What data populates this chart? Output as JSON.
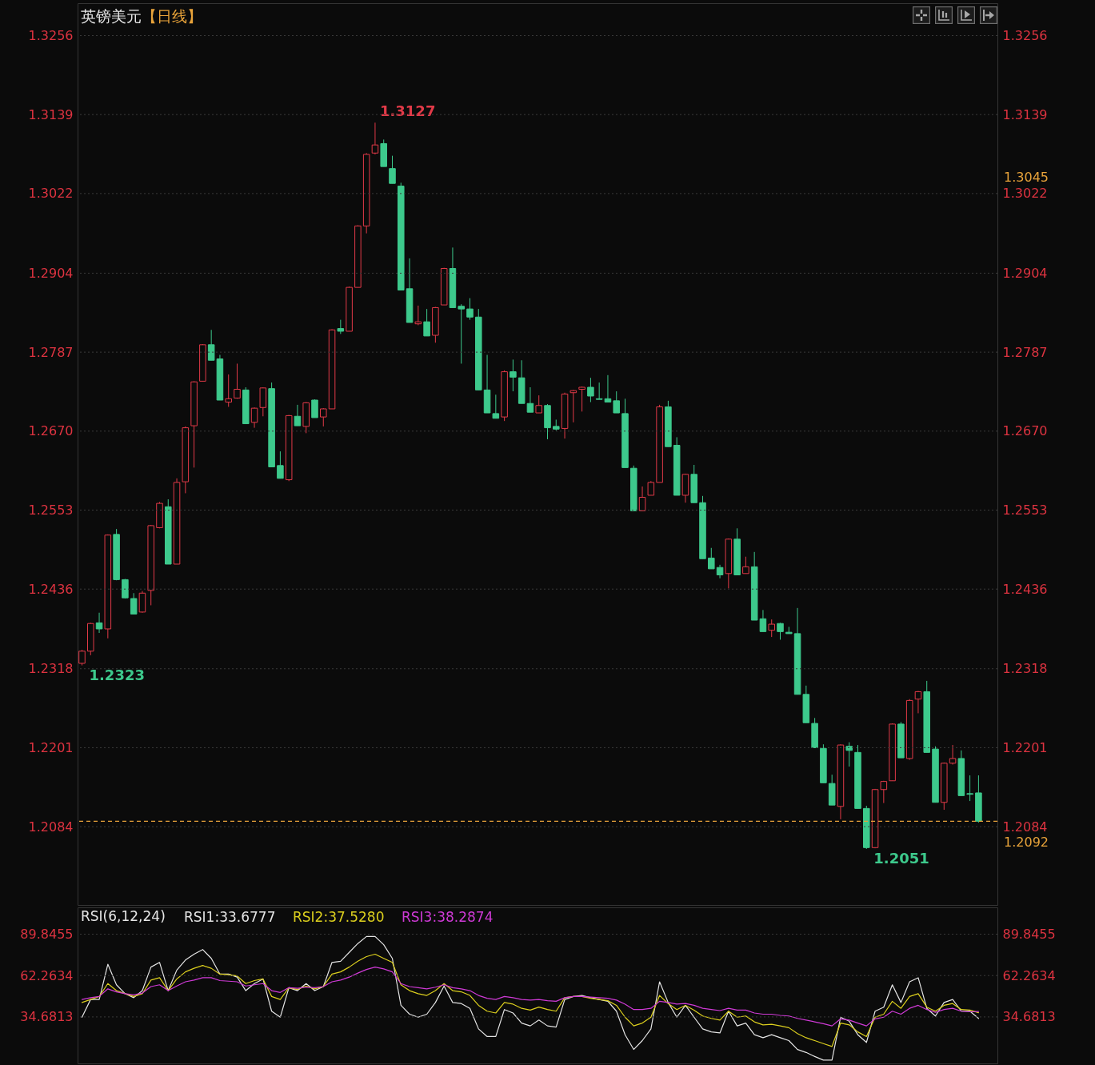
{
  "chart_data": [
    {
      "type": "candlestick",
      "title": "英镑美元",
      "subtitle": "【日线】",
      "categories": [
        null,
        null,
        null,
        null,
        null,
        null,
        null,
        null,
        null,
        null,
        null,
        null,
        null,
        null,
        null,
        null,
        null,
        null,
        null,
        null,
        null,
        null,
        null,
        null,
        null,
        null,
        null,
        null,
        null,
        null,
        null,
        null,
        null,
        null,
        null,
        null,
        null,
        null,
        null,
        null,
        null,
        null,
        null,
        null,
        null,
        null,
        null,
        null,
        null,
        null,
        null,
        null,
        null,
        null,
        null,
        null,
        null,
        null,
        null,
        null,
        null,
        null,
        null,
        null,
        null,
        null,
        null,
        null,
        null,
        null,
        null,
        null,
        null,
        null,
        null,
        null,
        null,
        null,
        null,
        null,
        null,
        null,
        null,
        null,
        null,
        null,
        null,
        null,
        null,
        null,
        null,
        null,
        null,
        null,
        null,
        null,
        null,
        null,
        null,
        null,
        null,
        null,
        null,
        null,
        null
      ],
      "ohlc": [
        [
          1.2326,
          1.2346,
          1.2323,
          1.2344
        ],
        [
          1.2344,
          1.2386,
          1.2338,
          1.2385
        ],
        [
          1.2386,
          1.2401,
          1.2371,
          1.2377
        ],
        [
          1.2377,
          1.2517,
          1.2363,
          1.2516
        ],
        [
          1.2517,
          1.2525,
          1.2449,
          1.245
        ],
        [
          1.245,
          1.2451,
          1.2422,
          1.2423
        ],
        [
          1.2422,
          1.243,
          1.2399,
          1.2399
        ],
        [
          1.2402,
          1.2433,
          1.2401,
          1.243
        ],
        [
          1.2434,
          1.2531,
          1.2412,
          1.253
        ],
        [
          1.2527,
          1.2565,
          1.2526,
          1.2563
        ],
        [
          1.2558,
          1.2569,
          1.2473,
          1.2473
        ],
        [
          1.2473,
          1.26,
          1.2473,
          1.2594
        ],
        [
          1.2595,
          1.2677,
          1.2578,
          1.2675
        ],
        [
          1.2678,
          1.2744,
          1.2616,
          1.2743
        ],
        [
          1.2744,
          1.2799,
          1.2744,
          1.2798
        ],
        [
          1.2798,
          1.282,
          1.2775,
          1.2775
        ],
        [
          1.2777,
          1.2783,
          1.2716,
          1.2716
        ],
        [
          1.2713,
          1.2754,
          1.2706,
          1.2718
        ],
        [
          1.2719,
          1.277,
          1.2718,
          1.2732
        ],
        [
          1.2731,
          1.2735,
          1.2681,
          1.2681
        ],
        [
          1.2683,
          1.2705,
          1.2675,
          1.2704
        ],
        [
          1.2705,
          1.2735,
          1.2692,
          1.2734
        ],
        [
          1.2733,
          1.2742,
          1.2617,
          1.2617
        ],
        [
          1.2619,
          1.264,
          1.26,
          1.26
        ],
        [
          1.2598,
          1.2694,
          1.2596,
          1.2693
        ],
        [
          1.2692,
          1.2709,
          1.2678,
          1.2678
        ],
        [
          1.2677,
          1.2713,
          1.2667,
          1.2712
        ],
        [
          1.2716,
          1.2717,
          1.269,
          1.269
        ],
        [
          1.2691,
          1.2704,
          1.2677,
          1.2703
        ],
        [
          1.2703,
          1.2821,
          1.2703,
          1.282
        ],
        [
          1.2822,
          1.2835,
          1.2814,
          1.2818
        ],
        [
          1.2818,
          1.2884,
          1.2818,
          1.2883
        ],
        [
          1.2883,
          1.2975,
          1.2883,
          1.2974
        ],
        [
          1.2974,
          1.3082,
          1.2963,
          1.308
        ],
        [
          1.3082,
          1.3127,
          1.308,
          1.3094
        ],
        [
          1.3096,
          1.3102,
          1.3062,
          1.3062
        ],
        [
          1.3059,
          1.3078,
          1.3037,
          1.3037
        ],
        [
          1.3033,
          1.3038,
          1.2879,
          1.2879
        ],
        [
          1.2881,
          1.2926,
          1.2831,
          1.2831
        ],
        [
          1.2829,
          1.2856,
          1.2827,
          1.2832
        ],
        [
          1.2832,
          1.2851,
          1.2811,
          1.2811
        ],
        [
          1.2812,
          1.2854,
          1.2801,
          1.2853
        ],
        [
          1.2857,
          1.2912,
          1.2857,
          1.2911
        ],
        [
          1.2911,
          1.2942,
          1.2853,
          1.2853
        ],
        [
          1.2855,
          1.2858,
          1.277,
          1.2851
        ],
        [
          1.2851,
          1.2867,
          1.2835,
          1.2839
        ],
        [
          1.2839,
          1.2851,
          1.2731,
          1.2731
        ],
        [
          1.2731,
          1.2783,
          1.2697,
          1.2697
        ],
        [
          1.2696,
          1.2724,
          1.2689,
          1.2689
        ],
        [
          1.2691,
          1.276,
          1.2685,
          1.2758
        ],
        [
          1.2758,
          1.2776,
          1.2729,
          1.275
        ],
        [
          1.2749,
          1.2775,
          1.2711,
          1.2711
        ],
        [
          1.2711,
          1.2735,
          1.2698,
          1.2698
        ],
        [
          1.2697,
          1.2723,
          1.2697,
          1.2708
        ],
        [
          1.2708,
          1.271,
          1.2658,
          1.2675
        ],
        [
          1.2677,
          1.2687,
          1.2671,
          1.2673
        ],
        [
          1.2674,
          1.2727,
          1.2659,
          1.2725
        ],
        [
          1.2727,
          1.2731,
          1.2683,
          1.273
        ],
        [
          1.2732,
          1.2736,
          1.2699,
          1.2735
        ],
        [
          1.2735,
          1.2749,
          1.2713,
          1.2722
        ],
        [
          1.2718,
          1.2742,
          1.2717,
          1.2717
        ],
        [
          1.2718,
          1.2753,
          1.2713,
          1.2713
        ],
        [
          1.2715,
          1.2729,
          1.2697,
          1.2697
        ],
        [
          1.2696,
          1.2718,
          1.2616,
          1.2616
        ],
        [
          1.2615,
          1.2619,
          1.2552,
          1.2552
        ],
        [
          1.2552,
          1.2588,
          1.2552,
          1.2572
        ],
        [
          1.2575,
          1.2596,
          1.2575,
          1.2594
        ],
        [
          1.2594,
          1.2709,
          1.2594,
          1.2706
        ],
        [
          1.2706,
          1.2715,
          1.2647,
          1.2647
        ],
        [
          1.2649,
          1.2661,
          1.2575,
          1.2575
        ],
        [
          1.2575,
          1.2607,
          1.2564,
          1.2606
        ],
        [
          1.2606,
          1.262,
          1.2564,
          1.2564
        ],
        [
          1.2564,
          1.2574,
          1.2481,
          1.2481
        ],
        [
          1.2482,
          1.2497,
          1.2466,
          1.2466
        ],
        [
          1.2468,
          1.2472,
          1.2452,
          1.2457
        ],
        [
          1.2459,
          1.2511,
          1.2437,
          1.251
        ],
        [
          1.251,
          1.2526,
          1.2457,
          1.2457
        ],
        [
          1.2459,
          1.2484,
          1.2459,
          1.2469
        ],
        [
          1.2469,
          1.2491,
          1.239,
          1.239
        ],
        [
          1.2392,
          1.2405,
          1.2373,
          1.2373
        ],
        [
          1.2375,
          1.2391,
          1.2365,
          1.2384
        ],
        [
          1.2385,
          1.2386,
          1.2361,
          1.2373
        ],
        [
          1.2372,
          1.238,
          1.237,
          1.237
        ],
        [
          1.237,
          1.2408,
          1.228,
          1.228
        ],
        [
          1.228,
          1.2293,
          1.2238,
          1.2238
        ],
        [
          1.2237,
          1.2245,
          1.2201,
          1.2201
        ],
        [
          1.22,
          1.2206,
          1.2149,
          1.2149
        ],
        [
          1.2148,
          1.2161,
          1.2116,
          1.2116
        ],
        [
          1.2114,
          1.2206,
          1.2095,
          1.2205
        ],
        [
          1.2203,
          1.2209,
          1.2173,
          1.2197
        ],
        [
          1.2194,
          1.2205,
          1.2111,
          1.2111
        ],
        [
          1.2111,
          1.2115,
          1.2051,
          1.2053
        ],
        [
          1.2053,
          1.214,
          1.2052,
          1.2139
        ],
        [
          1.2139,
          1.2152,
          1.2119,
          1.2151
        ],
        [
          1.2152,
          1.2237,
          1.2152,
          1.2236
        ],
        [
          1.2236,
          1.2239,
          1.2186,
          1.2186
        ],
        [
          1.2185,
          1.2273,
          1.2183,
          1.2271
        ],
        [
          1.2273,
          1.2285,
          1.2252,
          1.2284
        ],
        [
          1.2284,
          1.23,
          1.2194,
          1.2194
        ],
        [
          1.2199,
          1.2203,
          1.212,
          1.212
        ],
        [
          1.212,
          1.2179,
          1.2109,
          1.2178
        ],
        [
          1.2178,
          1.2205,
          1.2176,
          1.2185
        ],
        [
          1.2185,
          1.2197,
          1.213,
          1.213
        ],
        [
          1.2133,
          1.216,
          1.2122,
          1.2132
        ],
        [
          1.2134,
          1.216,
          1.209,
          1.2092
        ]
      ],
      "colors": [
        "#e23a48",
        "#e23a48",
        "#3dc98c",
        "#e23a48",
        "#3dc98c",
        "#3dc98c",
        "#3dc98c",
        "#e23a48",
        "#e23a48",
        "#e23a48",
        "#3dc98c",
        "#e23a48",
        "#e23a48",
        "#e23a48",
        "#e23a48",
        "#3dc98c",
        "#3dc98c",
        "#e23a48",
        "#e23a48",
        "#3dc98c",
        "#e23a48",
        "#e23a48",
        "#3dc98c",
        "#3dc98c",
        "#e23a48",
        "#3dc98c",
        "#e23a48",
        "#3dc98c",
        "#e23a48",
        "#e23a48",
        "#3dc98c",
        "#e23a48",
        "#e23a48",
        "#e23a48",
        "#e23a48",
        "#3dc98c",
        "#3dc98c",
        "#3dc98c",
        "#3dc98c",
        "#e23a48",
        "#3dc98c",
        "#e23a48",
        "#e23a48",
        "#3dc98c",
        "#3dc98c",
        "#3dc98c",
        "#3dc98c",
        "#3dc98c",
        "#3dc98c",
        "#e23a48",
        "#3dc98c",
        "#3dc98c",
        "#3dc98c",
        "#e23a48",
        "#3dc98c",
        "#3dc98c",
        "#e23a48",
        "#e23a48",
        "#e23a48",
        "#3dc98c",
        "#3dc98c",
        "#3dc98c",
        "#3dc98c",
        "#3dc98c",
        "#3dc98c",
        "#e23a48",
        "#e23a48",
        "#e23a48",
        "#3dc98c",
        "#3dc98c",
        "#e23a48",
        "#3dc98c",
        "#3dc98c",
        "#3dc98c",
        "#3dc98c",
        "#e23a48",
        "#3dc98c",
        "#e23a48",
        "#3dc98c",
        "#3dc98c",
        "#e23a48",
        "#3dc98c",
        "#3dc98c",
        "#3dc98c",
        "#3dc98c",
        "#3dc98c",
        "#3dc98c",
        "#3dc98c",
        "#e23a48",
        "#3dc98c",
        "#3dc98c",
        "#3dc98c",
        "#e23a48",
        "#e23a48",
        "#e23a48",
        "#3dc98c",
        "#e23a48",
        "#e23a48",
        "#3dc98c",
        "#3dc98c",
        "#e23a48",
        "#e23a48",
        "#3dc98c",
        "#3dc98c",
        "#3dc98c"
      ],
      "ylim": [
        1.1968,
        1.3304
      ],
      "yticks": [
        1.2084,
        1.2201,
        1.2318,
        1.2436,
        1.2553,
        {
          "value": 1.267,
          "label": "1.2670"
        },
        1.2787,
        1.2904,
        1.3022,
        1.3139,
        1.3256
      ],
      "y2lim": [
        1.1968,
        1.3304
      ],
      "y2ticks": [
        1.2084,
        1.2201,
        1.2318,
        1.2436,
        1.2553,
        {
          "value": 1.267,
          "label": "1.2670"
        },
        1.2787,
        1.2904,
        1.3022,
        1.3139,
        1.3256
      ],
      "grid": "y",
      "tick_labels": "y",
      "annotations": [
        "1.3127",
        "1.2323",
        "1.2051",
        "1.3045"
      ],
      "ref_lines": [
        {
          "axis": "y",
          "value": 1.2092,
          "label": "1.2092",
          "color": "#e8a33a",
          "line_style": "dashed"
        }
      ]
    },
    {
      "type": "line",
      "legend_title": "RSI(6,12,24)",
      "categories": [
        null,
        null,
        null,
        null,
        null,
        null,
        null,
        null,
        null,
        null,
        null,
        null,
        null,
        null,
        null,
        null,
        null,
        null,
        null,
        null,
        null,
        null,
        null,
        null,
        null,
        null,
        null,
        null,
        null,
        null,
        null,
        null,
        null,
        null,
        null,
        null,
        null,
        null,
        null,
        null,
        null,
        null,
        null,
        null,
        null,
        null,
        null,
        null,
        null,
        null,
        null,
        null,
        null,
        null,
        null,
        null,
        null,
        null,
        null,
        null,
        null,
        null,
        null,
        null,
        null,
        null,
        null,
        null,
        null,
        null,
        null,
        null,
        null,
        null,
        null,
        null,
        null,
        null,
        null,
        null,
        null,
        null,
        null,
        null,
        null,
        null,
        null,
        null,
        null,
        null,
        null,
        null,
        null,
        null,
        null,
        null,
        null,
        null,
        null,
        null,
        null,
        null,
        null,
        null,
        null
      ],
      "series": [
        {
          "name": "RSI1:33.6777",
          "color": "#e4e4e4",
          "values": [
            34.5,
            46.3,
            46.3,
            69.8,
            56.1,
            50.2,
            47.5,
            52.2,
            67.9,
            71.0,
            52.2,
            65.9,
            72.6,
            76.5,
            79.6,
            73.7,
            63.2,
            63.2,
            61.2,
            52.2,
            56.9,
            60.0,
            38.5,
            34.5,
            54.2,
            52.2,
            56.9,
            52.2,
            54.9,
            71.0,
            71.8,
            77.7,
            83.6,
            88.3,
            88.3,
            82.8,
            73.7,
            42.4,
            36.5,
            34.5,
            36.5,
            44.3,
            55.3,
            44.3,
            43.6,
            40.4,
            26.7,
            21.6,
            21.6,
            39.6,
            37.3,
            30.6,
            28.7,
            32.6,
            28.7,
            27.9,
            46.3,
            48.3,
            49.0,
            47.5,
            46.3,
            45.1,
            38.5,
            22.8,
            13.0,
            18.9,
            26.7,
            58.1,
            44.3,
            34.5,
            42.4,
            34.5,
            26.7,
            24.7,
            24.0,
            38.5,
            28.7,
            30.6,
            22.8,
            20.8,
            22.8,
            20.8,
            18.9,
            13.0,
            11.0,
            8.3,
            5.9,
            5.9,
            34.5,
            31.8,
            22.8,
            17.7,
            38.5,
            41.2,
            56.1,
            44.3,
            58.1,
            60.8,
            40.4,
            35.3,
            44.3,
            46.3,
            38.5,
            38.5,
            33.7
          ]
        },
        {
          "name": "RSI2:37.5280",
          "color": "#dccf1e",
          "values": [
            44.3,
            46.3,
            48.3,
            56.9,
            52.2,
            50.2,
            48.3,
            50.2,
            59.2,
            60.8,
            52.2,
            60.0,
            64.7,
            67.1,
            69.0,
            67.1,
            63.2,
            62.8,
            62.0,
            56.9,
            58.9,
            60.0,
            48.3,
            46.3,
            54.2,
            53.0,
            55.3,
            53.4,
            54.9,
            63.2,
            64.7,
            67.9,
            71.8,
            74.9,
            76.5,
            73.7,
            71.0,
            56.1,
            52.2,
            50.2,
            49.0,
            52.2,
            56.9,
            52.2,
            51.4,
            49.0,
            42.4,
            38.5,
            37.3,
            44.3,
            43.2,
            40.4,
            39.2,
            41.2,
            39.6,
            38.5,
            47.5,
            48.3,
            48.3,
            47.1,
            46.3,
            45.5,
            42.4,
            34.5,
            28.7,
            30.6,
            34.5,
            49.0,
            43.6,
            39.6,
            42.4,
            39.2,
            35.3,
            33.7,
            32.6,
            38.5,
            34.5,
            35.3,
            31.4,
            29.4,
            29.8,
            28.7,
            27.5,
            23.6,
            20.8,
            18.9,
            16.9,
            15.0,
            30.6,
            29.4,
            24.7,
            21.6,
            34.5,
            36.5,
            45.1,
            40.4,
            48.3,
            50.2,
            41.2,
            38.5,
            42.4,
            43.6,
            39.6,
            39.2,
            37.5
          ]
        },
        {
          "name": "RSI3:38.2874",
          "color": "#cf3ad6",
          "values": [
            46.3,
            47.5,
            48.3,
            53.4,
            51.4,
            50.2,
            49.4,
            50.6,
            54.9,
            56.1,
            52.2,
            55.3,
            58.1,
            59.2,
            60.8,
            60.8,
            58.9,
            58.5,
            58.1,
            55.3,
            56.1,
            56.9,
            52.2,
            51.0,
            54.2,
            53.8,
            54.5,
            54.2,
            54.9,
            58.1,
            59.2,
            61.2,
            63.9,
            66.3,
            67.9,
            66.7,
            64.7,
            56.9,
            54.9,
            54.2,
            53.4,
            54.5,
            56.1,
            54.2,
            53.4,
            52.2,
            49.0,
            47.1,
            46.3,
            48.3,
            47.5,
            46.3,
            45.9,
            46.3,
            45.5,
            45.1,
            47.5,
            48.3,
            48.3,
            47.9,
            47.5,
            47.1,
            45.9,
            43.2,
            39.6,
            39.6,
            40.4,
            45.1,
            44.3,
            43.2,
            43.6,
            42.4,
            40.4,
            39.6,
            38.9,
            40.4,
            39.2,
            39.2,
            37.3,
            36.5,
            36.5,
            35.7,
            35.3,
            33.7,
            32.6,
            31.4,
            30.2,
            28.7,
            33.4,
            32.6,
            30.6,
            28.7,
            33.4,
            34.5,
            38.5,
            36.5,
            40.4,
            42.4,
            39.6,
            37.7,
            39.6,
            40.4,
            38.5,
            38.1,
            38.3
          ]
        }
      ],
      "ylim": [
        3.7,
        107.7
      ],
      "yticks": [
        34.6813,
        62.2634,
        89.8455
      ],
      "y2lim": [
        3.7,
        107.7
      ],
      "y2ticks": [
        34.6813,
        62.2634,
        89.8455
      ],
      "grid": "y",
      "legend": "top left",
      "tick_labels": "y"
    }
  ]
}
